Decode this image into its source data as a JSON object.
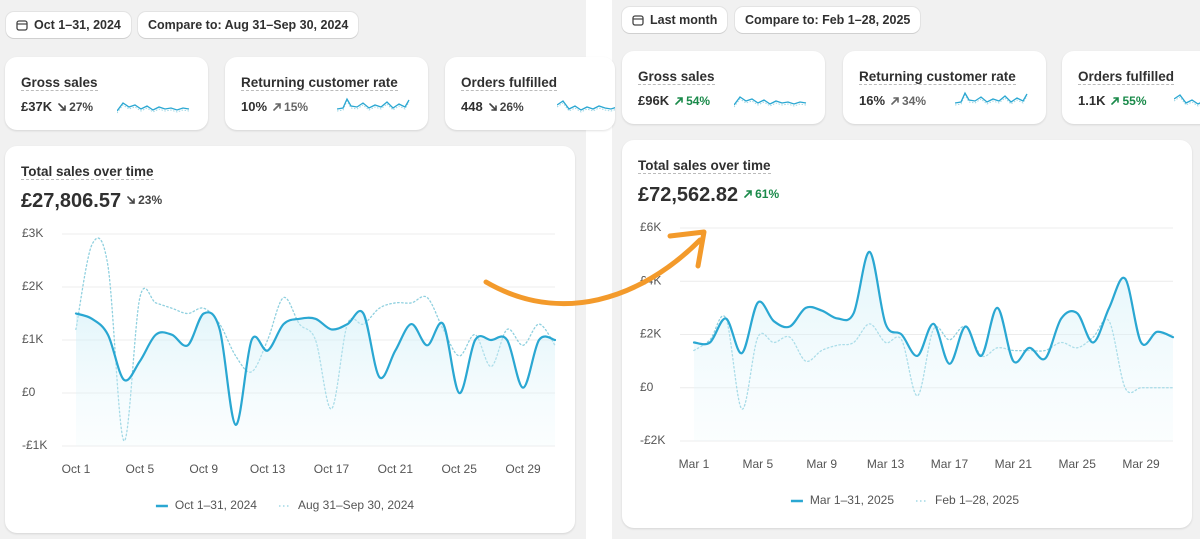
{
  "panels": [
    {
      "date_button": "Oct 1–31, 2024",
      "compare_button": "Compare to: Aug 31–Sep 30, 2024",
      "metrics": [
        {
          "label": "Gross sales",
          "value": "£37K",
          "change": "27%",
          "trend": "down",
          "change_color": "#444444"
        },
        {
          "label": "Returning customer rate",
          "value": "10%",
          "change": "15%",
          "trend": "up",
          "change_color": "#666666"
        },
        {
          "label": "Orders fulfilled",
          "value": "448",
          "change": "26%",
          "trend": "down",
          "change_color": "#444444"
        }
      ]
    },
    {
      "date_button": "Last month",
      "compare_button": "Compare to: Feb 1–28, 2025",
      "metrics": [
        {
          "label": "Gross sales",
          "value": "£96K",
          "change": "54%",
          "trend": "up",
          "change_color": "#1a8a4a"
        },
        {
          "label": "Returning customer rate",
          "value": "16%",
          "change": "34%",
          "trend": "up",
          "change_color": "#666666"
        },
        {
          "label": "Orders fulfilled",
          "value": "1.1K",
          "change": "55%",
          "trend": "up",
          "change_color": "#1a8a4a"
        }
      ]
    }
  ],
  "chart_data": [
    {
      "type": "line",
      "title": "Total sales over time",
      "total": "£27,806.57",
      "change": "23%",
      "trend": "down",
      "change_color": "#444444",
      "categories": [
        "Oct 1",
        null,
        null,
        null,
        "Oct 5",
        null,
        null,
        null,
        "Oct 9",
        null,
        null,
        null,
        "Oct 13",
        null,
        null,
        null,
        "Oct 17",
        null,
        null,
        null,
        "Oct 21",
        null,
        null,
        null,
        "Oct 25",
        null,
        null,
        null,
        "Oct 29",
        null,
        null
      ],
      "series": [
        {
          "name": "Oct 1–31, 2024",
          "color": "#2aa7d2",
          "style": "solid",
          "values": [
            1500,
            1400,
            1100,
            250,
            600,
            1100,
            1100,
            900,
            1500,
            1200,
            -600,
            1000,
            800,
            1300,
            1400,
            1400,
            1200,
            1300,
            1500,
            300,
            800,
            1300,
            900,
            1300,
            0,
            1000,
            1000,
            1000,
            100,
            1000,
            1000
          ]
        },
        {
          "name": "Aug 31–Sep 30, 2024",
          "color": "#8fd0df",
          "style": "dotted",
          "values": [
            1200,
            2800,
            2400,
            -900,
            1800,
            1700,
            1600,
            1500,
            1600,
            1300,
            700,
            400,
            1000,
            1800,
            1300,
            1000,
            -300,
            1300,
            1300,
            1600,
            1700,
            1700,
            1800,
            1200,
            700,
            1100,
            500,
            1200,
            900,
            1300,
            900
          ]
        }
      ],
      "ylim": [
        -1000,
        3000
      ],
      "yticks": [
        {
          "value": -1000,
          "label": "-£1K"
        },
        {
          "value": 0,
          "label": "£0"
        },
        {
          "value": 1000,
          "label": "£1K"
        },
        {
          "value": 2000,
          "label": "£2K"
        },
        {
          "value": 3000,
          "label": "£3K"
        }
      ],
      "grid": true
    },
    {
      "type": "line",
      "title": "Total sales over time",
      "total": "£72,562.82",
      "change": "61%",
      "trend": "up",
      "change_color": "#1a8a4a",
      "categories": [
        "Mar 1",
        null,
        null,
        null,
        "Mar 5",
        null,
        null,
        null,
        "Mar 9",
        null,
        null,
        null,
        "Mar 13",
        null,
        null,
        null,
        "Mar 17",
        null,
        null,
        null,
        "Mar 21",
        null,
        null,
        null,
        "Mar 25",
        null,
        null,
        null,
        "Mar 29",
        null,
        null
      ],
      "series": [
        {
          "name": "Mar 1–31, 2025",
          "color": "#2aa7d2",
          "style": "solid",
          "values": [
            1700,
            1700,
            2600,
            1300,
            3200,
            2500,
            2300,
            3000,
            2900,
            2600,
            2800,
            5100,
            2400,
            2000,
            1200,
            2400,
            900,
            2300,
            1200,
            3000,
            1000,
            1500,
            1100,
            2600,
            2800,
            1700,
            3000,
            4100,
            1700,
            2100,
            1900
          ]
        },
        {
          "name": "Feb 1–28, 2025",
          "color": "#8fd0df",
          "style": "dotted",
          "values": [
            1400,
            1800,
            2600,
            -800,
            1900,
            1700,
            1900,
            1000,
            1400,
            1600,
            1700,
            2400,
            1700,
            1800,
            -300,
            2200,
            1800,
            2300,
            1200,
            1500,
            1400,
            1400,
            1400,
            1700,
            1500,
            1900,
            2500,
            0,
            0,
            0,
            0
          ]
        }
      ],
      "ylim": [
        -2000,
        6000
      ],
      "yticks": [
        {
          "value": -2000,
          "label": "-£2K"
        },
        {
          "value": 0,
          "label": "£0"
        },
        {
          "value": 2000,
          "label": "£2K"
        },
        {
          "value": 4000,
          "label": "£4K"
        },
        {
          "value": 6000,
          "label": "£6K"
        }
      ],
      "grid": true
    }
  ]
}
